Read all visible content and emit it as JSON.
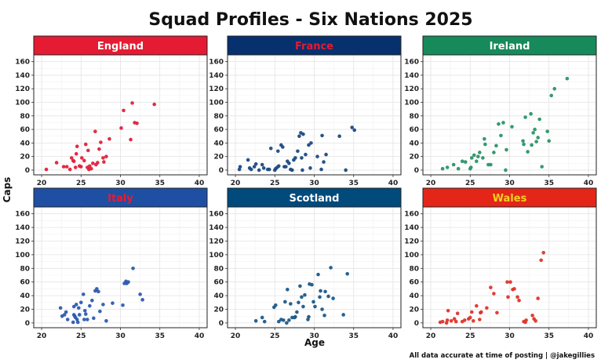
{
  "title": "Squad Profiles - Six Nations 2025",
  "caption": "All data accurate at time of posting | @jakegillies",
  "x_axis_title": "Age",
  "y_axis_title": "Caps",
  "chart_data": {
    "type": "scatter",
    "facet_layout": "2 rows x 3 columns",
    "xlim": [
      19,
      41
    ],
    "ylim": [
      -7,
      170
    ],
    "x_ticks": [
      20,
      25,
      30,
      35,
      40
    ],
    "y_ticks": [
      0,
      20,
      40,
      60,
      80,
      100,
      120,
      140,
      160
    ],
    "grid": true,
    "legend": "none",
    "xlabel": "Age",
    "ylabel": "Caps",
    "panels": [
      {
        "name": "England",
        "strip_color": "#e41b32",
        "strip_text_color": "#ffffff",
        "point_color": "#e0213c",
        "points": [
          [
            20.6,
            1
          ],
          [
            21.9,
            11
          ],
          [
            22.8,
            5
          ],
          [
            23.2,
            5
          ],
          [
            23.6,
            1
          ],
          [
            23.8,
            18
          ],
          [
            24.0,
            14
          ],
          [
            24.1,
            13
          ],
          [
            24.3,
            4
          ],
          [
            24.4,
            24
          ],
          [
            24.5,
            35
          ],
          [
            24.8,
            6
          ],
          [
            25.0,
            5
          ],
          [
            25.1,
            18
          ],
          [
            25.4,
            14
          ],
          [
            25.6,
            38
          ],
          [
            25.8,
            4
          ],
          [
            25.9,
            29
          ],
          [
            26.0,
            1
          ],
          [
            26.1,
            6
          ],
          [
            26.3,
            2
          ],
          [
            26.5,
            10
          ],
          [
            26.8,
            57
          ],
          [
            26.9,
            8
          ],
          [
            27.1,
            11
          ],
          [
            27.3,
            31
          ],
          [
            27.5,
            41
          ],
          [
            27.8,
            18
          ],
          [
            27.9,
            12
          ],
          [
            28.2,
            20
          ],
          [
            28.6,
            46
          ],
          [
            30.1,
            62
          ],
          [
            30.4,
            88
          ],
          [
            31.3,
            45
          ],
          [
            31.5,
            99
          ],
          [
            31.8,
            70
          ],
          [
            32.1,
            69
          ],
          [
            34.3,
            97
          ]
        ]
      },
      {
        "name": "France",
        "strip_color": "#07306e",
        "strip_text_color": "#e41b32",
        "point_color": "#1f4a80",
        "points": [
          [
            20.5,
            1
          ],
          [
            20.6,
            5
          ],
          [
            21.6,
            15
          ],
          [
            21.8,
            3
          ],
          [
            22.0,
            1
          ],
          [
            22.4,
            5
          ],
          [
            22.6,
            9
          ],
          [
            23.0,
            0
          ],
          [
            23.4,
            8
          ],
          [
            23.6,
            3
          ],
          [
            24.1,
            1
          ],
          [
            24.3,
            1
          ],
          [
            24.5,
            32
          ],
          [
            25.0,
            0
          ],
          [
            25.1,
            2
          ],
          [
            25.3,
            4
          ],
          [
            25.4,
            28
          ],
          [
            25.5,
            6
          ],
          [
            25.8,
            37
          ],
          [
            26.0,
            34
          ],
          [
            26.2,
            5
          ],
          [
            26.4,
            5
          ],
          [
            26.6,
            13
          ],
          [
            26.8,
            10
          ],
          [
            27.0,
            1
          ],
          [
            27.2,
            0
          ],
          [
            27.4,
            15
          ],
          [
            27.6,
            18
          ],
          [
            27.9,
            28
          ],
          [
            28.1,
            50
          ],
          [
            28.3,
            55
          ],
          [
            28.4,
            18
          ],
          [
            28.5,
            0
          ],
          [
            28.6,
            53
          ],
          [
            28.9,
            23
          ],
          [
            29.3,
            37
          ],
          [
            29.5,
            3
          ],
          [
            29.6,
            40
          ],
          [
            30.4,
            20
          ],
          [
            30.9,
            1
          ],
          [
            31.0,
            51
          ],
          [
            31.2,
            12
          ],
          [
            31.5,
            23
          ],
          [
            33.2,
            50
          ],
          [
            34.0,
            0
          ],
          [
            34.8,
            63
          ],
          [
            35.1,
            59
          ]
        ]
      },
      {
        "name": "Ireland",
        "strip_color": "#168a5a",
        "strip_text_color": "#ffffff",
        "point_color": "#2b9467",
        "points": [
          [
            21.5,
            2
          ],
          [
            22.1,
            4
          ],
          [
            22.9,
            8
          ],
          [
            23.5,
            2
          ],
          [
            24.0,
            13
          ],
          [
            24.4,
            12
          ],
          [
            25.0,
            2
          ],
          [
            25.1,
            4
          ],
          [
            25.2,
            18
          ],
          [
            25.5,
            22
          ],
          [
            25.8,
            13
          ],
          [
            26.0,
            20
          ],
          [
            26.2,
            26
          ],
          [
            26.6,
            18
          ],
          [
            26.8,
            46
          ],
          [
            26.9,
            38
          ],
          [
            27.3,
            8
          ],
          [
            27.6,
            8
          ],
          [
            28.0,
            26
          ],
          [
            28.3,
            36
          ],
          [
            28.6,
            68
          ],
          [
            28.9,
            51
          ],
          [
            29.2,
            70
          ],
          [
            29.5,
            0
          ],
          [
            29.6,
            30
          ],
          [
            30.3,
            64
          ],
          [
            31.7,
            43
          ],
          [
            31.8,
            38
          ],
          [
            32.0,
            78
          ],
          [
            32.3,
            27
          ],
          [
            32.7,
            83
          ],
          [
            32.8,
            37
          ],
          [
            33.0,
            55
          ],
          [
            33.2,
            60
          ],
          [
            33.4,
            42
          ],
          [
            33.6,
            48
          ],
          [
            33.8,
            75
          ],
          [
            34.1,
            5
          ],
          [
            34.8,
            57
          ],
          [
            35.0,
            43
          ],
          [
            35.3,
            110
          ],
          [
            35.7,
            120
          ],
          [
            37.3,
            135
          ]
        ]
      },
      {
        "name": "Italy",
        "strip_color": "#1f4fa2",
        "strip_text_color": "#e41b32",
        "point_color": "#2d5bb0",
        "points": [
          [
            22.4,
            22
          ],
          [
            22.6,
            10
          ],
          [
            22.9,
            12
          ],
          [
            23.1,
            16
          ],
          [
            23.3,
            5
          ],
          [
            24.0,
            1
          ],
          [
            24.1,
            12
          ],
          [
            24.1,
            24
          ],
          [
            24.2,
            10
          ],
          [
            24.3,
            8
          ],
          [
            24.4,
            27
          ],
          [
            24.5,
            5
          ],
          [
            24.6,
            1
          ],
          [
            24.7,
            22
          ],
          [
            24.8,
            12
          ],
          [
            25.0,
            30
          ],
          [
            25.3,
            42
          ],
          [
            25.4,
            5
          ],
          [
            25.5,
            18
          ],
          [
            25.6,
            13
          ],
          [
            25.8,
            5
          ],
          [
            26.1,
            25
          ],
          [
            26.4,
            33
          ],
          [
            26.6,
            7
          ],
          [
            26.8,
            47
          ],
          [
            27.0,
            50
          ],
          [
            27.2,
            46
          ],
          [
            27.4,
            17
          ],
          [
            27.8,
            27
          ],
          [
            28.2,
            3
          ],
          [
            29.0,
            29
          ],
          [
            30.3,
            26
          ],
          [
            30.5,
            58
          ],
          [
            30.7,
            61
          ],
          [
            30.8,
            58
          ],
          [
            31.0,
            60
          ],
          [
            31.6,
            80
          ],
          [
            32.5,
            42
          ],
          [
            32.8,
            34
          ]
        ]
      },
      {
        "name": "Scotland",
        "strip_color": "#004a7c",
        "strip_text_color": "#ffffff",
        "point_color": "#1b5a8a",
        "points": [
          [
            22.6,
            3
          ],
          [
            23.4,
            8
          ],
          [
            23.7,
            2
          ],
          [
            24.9,
            23
          ],
          [
            25.1,
            26
          ],
          [
            25.5,
            2
          ],
          [
            25.8,
            5
          ],
          [
            26.1,
            4
          ],
          [
            26.3,
            31
          ],
          [
            26.5,
            0
          ],
          [
            26.6,
            49
          ],
          [
            26.8,
            4
          ],
          [
            27.0,
            28
          ],
          [
            27.2,
            8
          ],
          [
            27.5,
            8
          ],
          [
            27.6,
            9
          ],
          [
            27.8,
            16
          ],
          [
            28.0,
            30
          ],
          [
            28.2,
            54
          ],
          [
            28.4,
            38
          ],
          [
            28.6,
            24
          ],
          [
            28.8,
            41
          ],
          [
            29.2,
            5
          ],
          [
            29.3,
            9
          ],
          [
            29.4,
            57
          ],
          [
            29.7,
            56
          ],
          [
            29.9,
            31
          ],
          [
            30.1,
            24
          ],
          [
            30.5,
            71
          ],
          [
            30.7,
            38
          ],
          [
            30.8,
            47
          ],
          [
            31.0,
            20
          ],
          [
            31.3,
            11
          ],
          [
            31.4,
            46
          ],
          [
            31.8,
            39
          ],
          [
            32.1,
            81
          ],
          [
            32.4,
            36
          ],
          [
            33.7,
            12
          ],
          [
            34.2,
            72
          ]
        ]
      },
      {
        "name": "Wales",
        "strip_color": "#e42618",
        "strip_text_color": "#f5d020",
        "point_color": "#e0352a",
        "points": [
          [
            21.2,
            1
          ],
          [
            21.5,
            2
          ],
          [
            22.0,
            0
          ],
          [
            22.1,
            4
          ],
          [
            22.2,
            18
          ],
          [
            22.6,
            3
          ],
          [
            23.0,
            6
          ],
          [
            23.2,
            2
          ],
          [
            23.4,
            14
          ],
          [
            24.0,
            2
          ],
          [
            24.3,
            4
          ],
          [
            24.8,
            6
          ],
          [
            25.0,
            8
          ],
          [
            25.2,
            16
          ],
          [
            25.4,
            3
          ],
          [
            25.8,
            25
          ],
          [
            26.2,
            5
          ],
          [
            26.3,
            15
          ],
          [
            26.4,
            16
          ],
          [
            27.1,
            22
          ],
          [
            27.6,
            52
          ],
          [
            28.0,
            43
          ],
          [
            28.4,
            15
          ],
          [
            29.7,
            60
          ],
          [
            29.8,
            38
          ],
          [
            30.1,
            60
          ],
          [
            30.4,
            49
          ],
          [
            30.6,
            50
          ],
          [
            31.0,
            38
          ],
          [
            31.2,
            33
          ],
          [
            31.8,
            2
          ],
          [
            32.0,
            1
          ],
          [
            32.1,
            4
          ],
          [
            32.9,
            11
          ],
          [
            33.1,
            6
          ],
          [
            33.3,
            3
          ],
          [
            33.6,
            36
          ],
          [
            34.0,
            92
          ],
          [
            34.3,
            103
          ]
        ]
      }
    ]
  }
}
